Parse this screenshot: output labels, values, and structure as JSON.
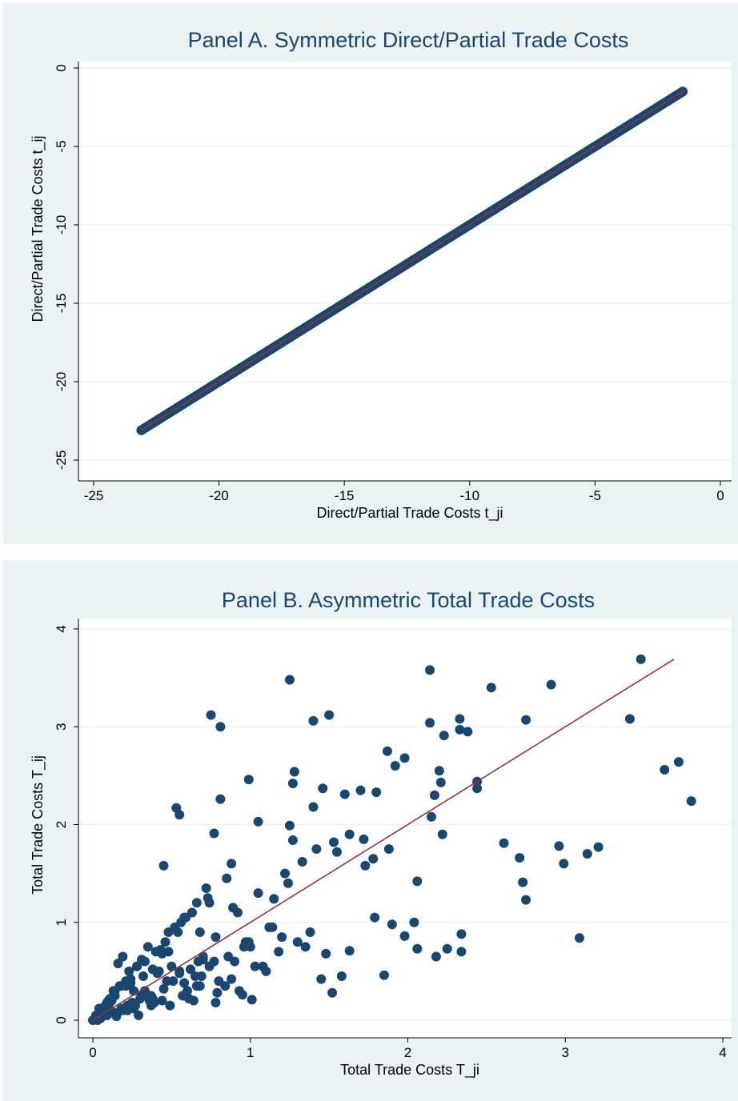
{
  "chart_data": [
    {
      "type": "scatter",
      "title": "Panel A. Symmetric Direct/Partial Trade Costs",
      "xlabel": "Direct/Partial Trade Costs t_ji",
      "ylabel": "Direct/Partial Trade Costs t_ij",
      "xlim": [
        -25,
        0
      ],
      "ylim": [
        -25,
        0
      ],
      "xticks": [
        "-25",
        "-20",
        "-15",
        "-10",
        "-5",
        "0"
      ],
      "yticks": [
        "-25",
        "-20",
        "-15",
        "-10",
        "-5",
        "0"
      ],
      "grid": true,
      "legend": "none",
      "colors": {
        "points": "#1a476f",
        "fit": "#90353b",
        "plot_bg": "#ffffff",
        "panel_bg": "#eaf2f3",
        "grid": "#eaf2f3"
      },
      "fit_line": {
        "x": [
          -23.1,
          -1.4
        ],
        "y": [
          -23.1,
          -1.4
        ]
      },
      "points": {
        "x": [
          -23.1,
          -22.4,
          -21.9,
          -21.4,
          -20.5,
          -20.3,
          -20.2,
          -19.6,
          -19.4,
          -19.2,
          -18.9,
          -18.6,
          -18.3,
          -18.0,
          -17.6,
          -17.2,
          -16.8,
          -16.4,
          -16.0,
          -15.5,
          -15.0,
          -14.5,
          -14.0,
          -13.5,
          -13.0,
          -12.5,
          -12.0,
          -11.5,
          -11.0,
          -10.5,
          -10.0,
          -9.5,
          -9.0,
          -8.5,
          -8.0,
          -7.5,
          -7.0,
          -6.5,
          -6.0,
          -5.5,
          -5.0,
          -4.5,
          -4.0,
          -3.5,
          -3.0,
          -2.5,
          -2.1,
          -1.8,
          -1.5
        ],
        "y": [
          -23.1,
          -22.4,
          -21.9,
          -21.4,
          -20.5,
          -20.3,
          -20.2,
          -19.6,
          -19.4,
          -19.2,
          -18.9,
          -18.6,
          -18.3,
          -18.0,
          -17.6,
          -17.2,
          -16.8,
          -16.4,
          -16.0,
          -15.5,
          -15.0,
          -14.5,
          -14.0,
          -13.5,
          -13.0,
          -12.5,
          -12.0,
          -11.5,
          -11.0,
          -10.5,
          -10.0,
          -9.5,
          -9.0,
          -8.5,
          -8.0,
          -7.5,
          -7.0,
          -6.5,
          -6.0,
          -5.5,
          -5.0,
          -4.5,
          -4.0,
          -3.5,
          -3.0,
          -2.5,
          -2.1,
          -1.8,
          -1.5
        ]
      }
    },
    {
      "type": "scatter",
      "title": "Panel B. Asymmetric Total Trade Costs",
      "xlabel": "Total Trade Costs T_ji",
      "ylabel": "Total Trade Costs T_ij",
      "xlim": [
        0,
        4
      ],
      "ylim": [
        0,
        4
      ],
      "xticks": [
        "0",
        "1",
        "2",
        "3",
        "4"
      ],
      "yticks": [
        "0",
        "1",
        "2",
        "3",
        "4"
      ],
      "grid": true,
      "legend": "none",
      "colors": {
        "points": "#1a476f",
        "fit": "#90353b",
        "plot_bg": "#ffffff",
        "panel_bg": "#eaf2f3",
        "grid": "#eaf2f3"
      },
      "fit_line": {
        "x": [
          0,
          3.69
        ],
        "y": [
          0,
          3.69
        ]
      },
      "points": {
        "x": [
          3.48,
          2.14,
          1.25,
          2.53,
          2.91,
          0.75,
          1.5,
          1.4,
          2.33,
          2.44,
          2.14,
          3.41,
          2.75,
          0.81,
          2.23,
          2.38,
          1.87,
          1.98,
          1.92,
          3.72,
          3.63,
          1.28,
          2.21,
          1.27,
          2.44,
          2.17,
          0.99,
          1.46,
          1.8,
          1.6,
          1.7,
          1.4,
          1.25,
          2.15,
          2.33,
          0.81,
          3.8,
          2.2,
          0.53,
          0.55,
          1.53,
          1.73,
          1.05,
          1.27,
          0.45,
          0.88,
          0.77,
          2.96,
          2.61,
          2.22,
          3.21,
          3.14,
          2.71,
          2.99,
          2.73,
          2.75,
          1.15,
          2.06,
          3.09,
          2.34,
          2.18,
          2.34,
          2.25,
          2.06,
          1.98,
          1.9,
          1.79,
          1.63,
          1.85,
          1.01,
          0.95,
          0.7,
          0.62,
          0.55,
          0.47,
          0.45,
          0.37,
          0.25,
          0.22,
          0.15,
          0.3,
          0.42,
          0.33,
          0.21,
          0.12,
          0.18,
          0.08,
          0.05,
          0.03,
          0.28,
          0.35,
          0.48,
          0.58,
          0.66,
          0.72,
          0.85,
          0.92,
          1.05,
          1.12,
          1.22,
          1.33,
          1.42,
          1.55,
          1.63,
          1.72,
          1.78,
          1.88,
          2.04,
          0.6,
          0.65,
          0.7,
          0.78,
          0.9,
          0.96,
          1.08,
          1.18,
          1.3,
          1.38,
          1.48,
          1.58,
          0.4,
          0.5,
          0.32,
          0.26,
          0.14,
          0.1,
          0.06,
          0.02,
          0.0,
          0.04,
          0.09,
          0.13,
          0.17,
          0.23,
          0.27,
          0.31,
          0.36,
          0.41,
          0.46,
          0.52,
          0.57,
          0.63,
          0.68,
          0.74,
          0.8,
          0.86,
          0.93,
          1.0,
          1.1,
          1.2,
          0.2,
          0.24,
          0.34,
          0.38,
          0.44,
          0.49,
          0.54,
          0.59,
          0.64,
          0.69,
          0.74,
          0.79,
          0.16,
          0.11,
          0.07,
          0.19,
          0.29,
          0.39,
          0.43,
          0.51,
          0.56,
          0.61,
          0.67,
          0.73,
          0.84,
          0.89,
          0.97,
          1.03,
          1.14,
          1.24,
          1.35,
          1.45,
          1.52,
          0.12,
          0.22,
          0.33,
          0.44,
          0.55,
          0.66,
          0.77,
          0.88,
          0.99,
          0.18,
          0.28,
          0.38,
          0.48,
          0.58,
          0.68,
          0.78,
          0.09,
          0.14,
          0.19,
          0.24,
          0.31,
          0.37,
          0.05,
          0.08,
          0.11,
          0.15,
          0.21,
          0.26,
          0.03,
          0.06,
          0.1,
          0.13
        ],
        "y": [
          3.69,
          3.58,
          3.48,
          3.4,
          3.43,
          3.12,
          3.12,
          3.06,
          3.08,
          2.44,
          3.04,
          3.08,
          3.07,
          3.0,
          2.91,
          2.95,
          2.75,
          2.68,
          2.6,
          2.64,
          2.56,
          2.54,
          2.43,
          2.42,
          2.37,
          2.3,
          2.46,
          2.37,
          2.33,
          2.31,
          2.35,
          2.18,
          1.99,
          2.08,
          2.97,
          2.26,
          2.24,
          2.55,
          2.17,
          2.1,
          1.82,
          1.58,
          2.03,
          1.84,
          1.58,
          1.6,
          1.91,
          1.78,
          1.81,
          1.9,
          1.77,
          1.7,
          1.66,
          1.6,
          1.41,
          1.23,
          1.24,
          1.42,
          0.84,
          0.88,
          0.65,
          0.7,
          0.73,
          0.73,
          0.86,
          0.98,
          1.05,
          0.71,
          0.46,
          0.21,
          0.26,
          0.62,
          0.52,
          0.48,
          0.4,
          0.32,
          0.25,
          0.18,
          0.1,
          0.06,
          0.22,
          0.5,
          0.6,
          0.4,
          0.2,
          0.35,
          0.15,
          0.1,
          0.05,
          0.55,
          0.75,
          0.9,
          1.05,
          1.2,
          1.35,
          1.45,
          1.1,
          1.3,
          0.95,
          1.5,
          1.62,
          1.75,
          1.72,
          1.9,
          1.85,
          1.65,
          1.75,
          1.0,
          0.3,
          0.45,
          0.65,
          0.85,
          0.6,
          0.75,
          0.55,
          0.7,
          0.8,
          0.9,
          0.68,
          0.45,
          0.7,
          0.55,
          0.45,
          0.3,
          0.25,
          0.2,
          0.1,
          0.05,
          0.0,
          0.12,
          0.18,
          0.3,
          0.35,
          0.5,
          0.15,
          0.62,
          0.2,
          0.48,
          0.8,
          0.95,
          0.25,
          1.1,
          0.35,
          0.55,
          0.4,
          0.65,
          0.3,
          0.75,
          0.5,
          0.85,
          0.12,
          0.38,
          0.25,
          0.52,
          0.68,
          0.15,
          0.9,
          1.05,
          0.2,
          0.45,
          1.2,
          0.28,
          0.58,
          0.22,
          0.09,
          0.65,
          0.05,
          0.18,
          0.72,
          0.4,
          1.0,
          0.22,
          0.6,
          1.25,
          0.35,
          1.15,
          0.8,
          0.55,
          0.95,
          1.4,
          0.75,
          0.42,
          0.28,
          0.08,
          0.15,
          0.3,
          0.2,
          0.5,
          0.35,
          0.6,
          0.42,
          0.8,
          0.12,
          0.55,
          0.22,
          0.7,
          0.38,
          0.9,
          0.18,
          0.05,
          0.3,
          0.1,
          0.42,
          0.25,
          0.15,
          0.02,
          0.08,
          0.22,
          0.04,
          0.35,
          0.12,
          0.0,
          0.06,
          0.15,
          0.08
        ]
      }
    }
  ]
}
